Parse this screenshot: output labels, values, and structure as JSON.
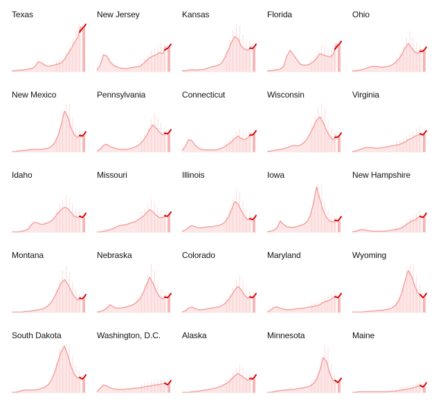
{
  "chart_data": {
    "type": "area",
    "layout": {
      "rows": 5,
      "cols": 5
    },
    "x_index": {
      "description": "",
      "length": 40
    },
    "colors": {
      "area_fill": "#fde6e6",
      "line": "#f4a2a2",
      "spikes": "#f8c4c4",
      "recent_band": "#f7b5b5",
      "recent_line": "#d90000"
    },
    "panels": [
      {
        "state": "Texas",
        "values": [
          2,
          2,
          3,
          3,
          4,
          5,
          6,
          9,
          18,
          16,
          12,
          10,
          11,
          12,
          14,
          16,
          22,
          32,
          40,
          52,
          60,
          80
        ]
      },
      {
        "state": "New Jersey",
        "values": [
          3,
          12,
          30,
          28,
          18,
          12,
          9,
          7,
          6,
          6,
          7,
          8,
          9,
          10,
          14,
          20,
          25,
          28,
          30,
          34,
          32,
          45
        ]
      },
      {
        "state": "Kansas",
        "values": [
          2,
          2,
          3,
          4,
          3,
          4,
          4,
          5,
          7,
          9,
          10,
          12,
          15,
          25,
          38,
          52,
          62,
          58,
          45,
          40,
          38,
          45
        ]
      },
      {
        "state": "Florida",
        "values": [
          2,
          2,
          3,
          4,
          5,
          10,
          28,
          38,
          30,
          22,
          14,
          12,
          12,
          14,
          18,
          24,
          32,
          30,
          28,
          26,
          30,
          50
        ]
      },
      {
        "state": "Ohio",
        "values": [
          2,
          2,
          3,
          4,
          6,
          8,
          10,
          10,
          9,
          8,
          9,
          10,
          12,
          16,
          22,
          30,
          42,
          50,
          42,
          35,
          32,
          40
        ]
      },
      {
        "state": "New Mexico",
        "values": [
          1,
          1,
          2,
          3,
          3,
          4,
          5,
          5,
          5,
          5,
          6,
          7,
          10,
          16,
          28,
          48,
          72,
          62,
          42,
          30,
          26,
          32
        ]
      },
      {
        "state": "Pennsylvania",
        "values": [
          2,
          5,
          12,
          14,
          10,
          8,
          6,
          5,
          5,
          5,
          6,
          8,
          10,
          14,
          20,
          28,
          40,
          48,
          42,
          35,
          30,
          36
        ]
      },
      {
        "state": "Connecticut",
        "values": [
          3,
          10,
          22,
          20,
          12,
          7,
          5,
          4,
          4,
          4,
          4,
          5,
          7,
          10,
          14,
          18,
          24,
          28,
          24,
          22,
          25,
          34
        ]
      },
      {
        "state": "Wisconsin",
        "values": [
          1,
          2,
          3,
          4,
          5,
          6,
          8,
          10,
          12,
          11,
          12,
          16,
          22,
          32,
          44,
          56,
          62,
          52,
          38,
          28,
          22,
          30
        ]
      },
      {
        "state": "Virginia",
        "values": [
          1,
          2,
          4,
          6,
          8,
          8,
          8,
          7,
          7,
          8,
          9,
          10,
          11,
          12,
          13,
          15,
          18,
          22,
          24,
          28,
          30,
          34
        ]
      },
      {
        "state": "Idaho",
        "values": [
          1,
          1,
          1,
          2,
          3,
          6,
          14,
          18,
          16,
          14,
          15,
          17,
          20,
          26,
          34,
          40,
          44,
          42,
          35,
          28,
          26,
          30
        ]
      },
      {
        "state": "Missouri",
        "values": [
          1,
          1,
          2,
          3,
          5,
          7,
          10,
          12,
          13,
          14,
          16,
          18,
          20,
          24,
          28,
          34,
          40,
          36,
          30,
          26,
          26,
          32
        ]
      },
      {
        "state": "Illinois",
        "values": [
          2,
          4,
          9,
          12,
          10,
          8,
          8,
          9,
          10,
          10,
          11,
          12,
          14,
          18,
          26,
          40,
          54,
          50,
          38,
          28,
          22,
          26
        ]
      },
      {
        "state": "Iowa",
        "values": [
          1,
          2,
          4,
          8,
          20,
          14,
          10,
          9,
          9,
          10,
          12,
          14,
          18,
          28,
          50,
          80,
          58,
          38,
          26,
          20,
          18,
          24
        ]
      },
      {
        "state": "New Hampshire",
        "values": [
          1,
          2,
          4,
          5,
          4,
          3,
          2,
          2,
          2,
          2,
          2,
          3,
          4,
          5,
          6,
          8,
          12,
          16,
          20,
          22,
          26,
          30
        ]
      },
      {
        "state": "Montana",
        "values": [
          1,
          1,
          1,
          1,
          2,
          2,
          3,
          4,
          5,
          6,
          8,
          12,
          18,
          28,
          40,
          52,
          58,
          50,
          38,
          28,
          22,
          28
        ]
      },
      {
        "state": "Nebraska",
        "values": [
          1,
          2,
          4,
          8,
          14,
          10,
          8,
          8,
          9,
          10,
          12,
          14,
          18,
          24,
          34,
          48,
          62,
          52,
          38,
          28,
          24,
          30
        ]
      },
      {
        "state": "Colorado",
        "values": [
          1,
          3,
          8,
          10,
          7,
          5,
          5,
          6,
          7,
          8,
          9,
          10,
          12,
          16,
          22,
          30,
          40,
          46,
          40,
          30,
          25,
          30
        ]
      },
      {
        "state": "Maryland",
        "values": [
          1,
          4,
          9,
          10,
          8,
          6,
          5,
          5,
          6,
          7,
          7,
          8,
          9,
          10,
          11,
          12,
          14,
          18,
          20,
          22,
          26,
          30
        ]
      },
      {
        "state": "Wyoming",
        "values": [
          1,
          1,
          1,
          1,
          2,
          2,
          3,
          3,
          4,
          4,
          5,
          6,
          8,
          12,
          20,
          34,
          56,
          74,
          64,
          46,
          34,
          30
        ]
      },
      {
        "state": "South Dakota",
        "values": [
          1,
          1,
          2,
          4,
          5,
          5,
          5,
          5,
          6,
          8,
          10,
          14,
          22,
          36,
          54,
          72,
          82,
          66,
          46,
          32,
          26,
          28
        ]
      },
      {
        "state": "Washington, D.C.",
        "values": [
          2,
          8,
          14,
          12,
          9,
          7,
          6,
          6,
          6,
          7,
          7,
          8,
          8,
          9,
          10,
          11,
          12,
          13,
          14,
          15,
          16,
          18
        ]
      },
      {
        "state": "Alaska",
        "values": [
          1,
          1,
          1,
          2,
          2,
          3,
          4,
          5,
          6,
          7,
          8,
          10,
          12,
          15,
          18,
          24,
          30,
          34,
          30,
          26,
          22,
          28
        ]
      },
      {
        "state": "Minnesota",
        "values": [
          1,
          1,
          2,
          3,
          4,
          5,
          5,
          6,
          6,
          7,
          8,
          9,
          10,
          12,
          16,
          24,
          40,
          62,
          56,
          34,
          22,
          22
        ]
      },
      {
        "state": "Maine",
        "values": [
          1,
          1,
          2,
          2,
          2,
          2,
          2,
          2,
          2,
          2,
          2,
          2,
          3,
          3,
          4,
          5,
          6,
          7,
          8,
          10,
          12,
          14
        ]
      }
    ]
  }
}
